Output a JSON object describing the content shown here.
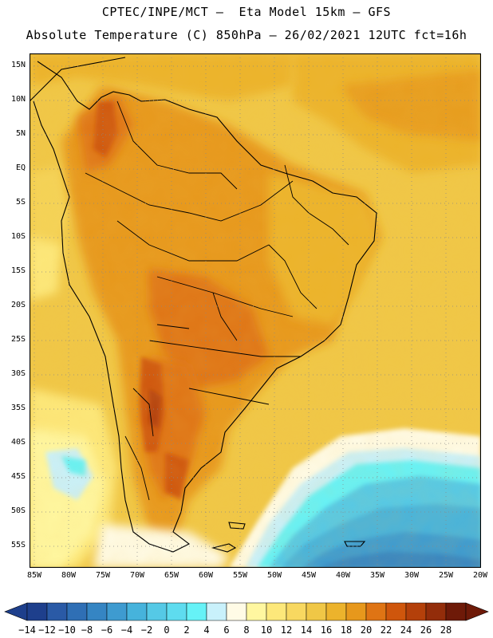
{
  "header": {
    "line1": "CPTEC/INPE/MCT –  Eta Model 15km – GFS",
    "line2": "Absolute Temperature (C) 850hPa – 26/02/2021 12UTC fct=16h"
  },
  "map": {
    "lat_labels": [
      "15N",
      "10N",
      "5N",
      "EQ",
      "5S",
      "10S",
      "15S",
      "20S",
      "25S",
      "30S",
      "35S",
      "40S",
      "45S",
      "50S",
      "55S"
    ],
    "lon_labels": [
      "85W",
      "80W",
      "75W",
      "70W",
      "65W",
      "60W",
      "55W",
      "50W",
      "45W",
      "40W",
      "35W",
      "30W",
      "25W",
      "20W"
    ],
    "extent": {
      "lon_min": -85,
      "lon_max": -20,
      "lat_min": -58,
      "lat_max": 17
    }
  },
  "colorbar": {
    "labels": [
      "-14",
      "-12",
      "-10",
      "-8",
      "-6",
      "-4",
      "-2",
      "0",
      "2",
      "4",
      "6",
      "8",
      "10",
      "12",
      "14",
      "16",
      "18",
      "20",
      "22",
      "24",
      "26",
      "28"
    ],
    "colors": [
      "#1e3f8c",
      "#2a5aa6",
      "#2f6fb5",
      "#3585c3",
      "#3e9bd0",
      "#46b3dc",
      "#55c9e6",
      "#5edcef",
      "#66f2f7",
      "#c9f1fb",
      "#fffbe6",
      "#fff7a0",
      "#fde87a",
      "#f8d860",
      "#f0c746",
      "#ecb32c",
      "#e7981c",
      "#df7414",
      "#cf560c",
      "#b4400a",
      "#932d0a",
      "#6e1a08"
    ]
  }
}
